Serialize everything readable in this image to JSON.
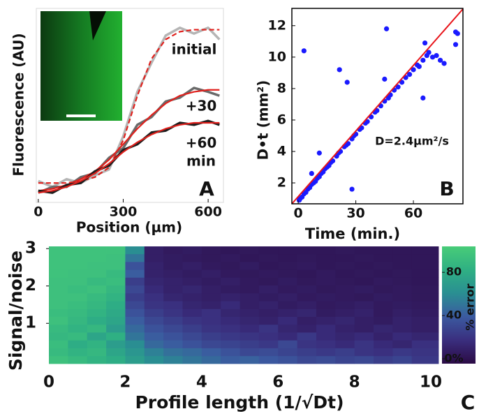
{
  "chart_data": [
    {
      "type": "line",
      "xlabel": "Position (µm)",
      "ylabel": "Fluorescence (AU)",
      "panel": "A",
      "annotations": [
        "initial",
        "+30",
        "+60",
        "min"
      ],
      "xlim": [
        -7,
        654
      ],
      "xticks": [
        0,
        300,
        600
      ],
      "ylim": [
        0,
        1
      ],
      "x": [
        0,
        50,
        100,
        150,
        200,
        250,
        300,
        350,
        400,
        450,
        500,
        550,
        600,
        640
      ],
      "series": [
        {
          "color": "#b5b5b5",
          "linestyle": "solid",
          "values": [
            0.11,
            0.08,
            0.12,
            0.1,
            0.14,
            0.17,
            0.34,
            0.57,
            0.72,
            0.86,
            0.9,
            0.87,
            0.9,
            0.84
          ]
        },
        {
          "color": "#e0201c",
          "linestyle": "dashed",
          "values": [
            0.1,
            0.1,
            0.1,
            0.11,
            0.13,
            0.18,
            0.32,
            0.55,
            0.74,
            0.84,
            0.88,
            0.89,
            0.89,
            0.89
          ]
        },
        {
          "color": "#6a6a6a",
          "linestyle": "solid",
          "values": [
            0.05,
            0.08,
            0.08,
            0.13,
            0.15,
            0.23,
            0.28,
            0.4,
            0.44,
            0.52,
            0.54,
            0.59,
            0.57,
            0.55
          ]
        },
        {
          "color": "#e0201c",
          "linestyle": "solid",
          "values": [
            0.06,
            0.07,
            0.09,
            0.12,
            0.16,
            0.22,
            0.3,
            0.38,
            0.45,
            0.51,
            0.55,
            0.57,
            0.58,
            0.58
          ]
        },
        {
          "color": "#1e1e1e",
          "linestyle": "solid",
          "values": [
            0.06,
            0.05,
            0.09,
            0.1,
            0.16,
            0.19,
            0.27,
            0.3,
            0.36,
            0.37,
            0.41,
            0.4,
            0.42,
            0.4
          ]
        },
        {
          "color": "#e0201c",
          "linestyle": "solid",
          "values": [
            0.05,
            0.06,
            0.08,
            0.11,
            0.15,
            0.2,
            0.26,
            0.31,
            0.35,
            0.38,
            0.4,
            0.41,
            0.41,
            0.41
          ]
        }
      ]
    },
    {
      "type": "scatter",
      "xlabel": "Time (min.)",
      "ylabel": "D•t (mm²)",
      "panel": "B",
      "annotations": [
        "D=2.4µm²/s"
      ],
      "xlim": [
        -3.3,
        85.8
      ],
      "xticks": [
        0,
        30,
        60
      ],
      "ylim": [
        0.67,
        13.1
      ],
      "yticks": [
        2,
        4,
        6,
        8,
        10,
        12
      ],
      "series": [
        {
          "type": "scatter",
          "color": "#1a1aff",
          "x": [
            0.5,
            1,
            2,
            3,
            4,
            5,
            6,
            7,
            8,
            9,
            10,
            11,
            12,
            13,
            14,
            15,
            16,
            17,
            18,
            20,
            21,
            22,
            24,
            25,
            26,
            28,
            29,
            30,
            32,
            33,
            35,
            36,
            38,
            40,
            41,
            43,
            45,
            47,
            48,
            50,
            52,
            54,
            56,
            58,
            60,
            62,
            63,
            65,
            67,
            68,
            70,
            72,
            74,
            76,
            82,
            83,
            82,
            3,
            21.5,
            25.5,
            46,
            11,
            28,
            7,
            65,
            45,
            66
          ],
          "values": [
            0.9,
            1.0,
            1.1,
            1.3,
            1.4,
            1.6,
            1.7,
            1.9,
            2.0,
            2.1,
            2.3,
            2.4,
            2.6,
            2.7,
            2.9,
            3.0,
            3.1,
            3.3,
            3.4,
            3.7,
            3.9,
            4.0,
            4.3,
            4.4,
            4.5,
            4.8,
            5.0,
            5.1,
            5.4,
            5.5,
            5.8,
            5.9,
            6.2,
            6.5,
            6.6,
            6.9,
            7.2,
            7.4,
            7.6,
            7.9,
            8.1,
            8.4,
            8.7,
            8.9,
            9.2,
            9.5,
            9.4,
            9.8,
            10.1,
            10.3,
            10.0,
            10.1,
            9.8,
            9.6,
            11.6,
            11.5,
            10.8,
            10.4,
            9.2,
            8.4,
            11.8,
            3.9,
            1.6,
            2.6,
            7.4,
            8.6,
            10.9
          ]
        },
        {
          "type": "line",
          "color": "#e8141a",
          "x": [
            -3.3,
            85.8
          ],
          "values": [
            0.67,
            13.06
          ]
        }
      ]
    },
    {
      "type": "heatmap",
      "xlabel": "Profile length (1/√Dt)",
      "ylabel": "Signal/noise",
      "panel": "C",
      "xlim": [
        0,
        10.2
      ],
      "xticks": [
        0,
        2,
        4,
        6,
        8,
        10
      ],
      "ylim": [
        -0.08,
        3.06
      ],
      "yticks": [
        1,
        2,
        3
      ],
      "xbins": [
        0,
        0.5,
        1,
        1.5,
        2,
        2.5,
        3,
        3.5,
        4,
        4.5,
        5,
        5.5,
        6,
        6.5,
        7,
        7.5,
        8,
        8.5,
        9,
        9.5,
        10.2
      ],
      "ybins": [
        -0.08,
        0.13,
        0.34,
        0.55,
        0.76,
        0.97,
        1.18,
        1.39,
        1.6,
        1.81,
        2.02,
        2.23,
        2.44,
        2.65,
        2.86,
        3.06
      ],
      "values": [
        [
          95,
          90,
          85,
          80,
          70,
          60,
          55,
          50,
          45,
          40,
          42,
          38,
          35,
          30,
          32,
          28,
          30,
          25,
          28,
          22
        ],
        [
          90,
          85,
          88,
          75,
          65,
          55,
          48,
          45,
          40,
          35,
          30,
          32,
          28,
          25,
          22,
          25,
          20,
          18,
          22,
          20
        ],
        [
          92,
          80,
          85,
          70,
          60,
          45,
          40,
          35,
          30,
          28,
          25,
          22,
          30,
          20,
          18,
          15,
          20,
          15,
          12,
          18
        ],
        [
          88,
          90,
          75,
          82,
          50,
          40,
          35,
          30,
          25,
          22,
          20,
          18,
          15,
          22,
          15,
          12,
          15,
          10,
          15,
          12
        ],
        [
          90,
          85,
          88,
          70,
          45,
          35,
          30,
          25,
          20,
          18,
          15,
          20,
          12,
          10,
          15,
          10,
          8,
          12,
          10,
          8
        ],
        [
          95,
          88,
          80,
          75,
          40,
          30,
          25,
          20,
          18,
          15,
          12,
          10,
          15,
          8,
          10,
          12,
          8,
          6,
          10,
          8
        ],
        [
          92,
          90,
          85,
          78,
          35,
          25,
          20,
          15,
          18,
          12,
          10,
          8,
          10,
          12,
          6,
          8,
          10,
          5,
          8,
          6
        ],
        [
          95,
          92,
          88,
          80,
          30,
          20,
          18,
          12,
          10,
          15,
          8,
          10,
          6,
          8,
          5,
          6,
          8,
          5,
          6,
          5
        ],
        [
          95,
          95,
          90,
          85,
          25,
          18,
          12,
          10,
          8,
          10,
          8,
          6,
          8,
          5,
          6,
          5,
          4,
          6,
          5,
          4
        ],
        [
          95,
          92,
          95,
          88,
          30,
          15,
          10,
          12,
          8,
          6,
          5,
          8,
          5,
          6,
          4,
          5,
          6,
          4,
          5,
          4
        ],
        [
          95,
          95,
          90,
          92,
          25,
          12,
          10,
          8,
          6,
          8,
          5,
          4,
          6,
          4,
          5,
          4,
          3,
          5,
          4,
          3
        ],
        [
          96,
          95,
          95,
          90,
          40,
          10,
          8,
          6,
          8,
          5,
          4,
          5,
          4,
          3,
          5,
          3,
          4,
          3,
          4,
          3
        ],
        [
          96,
          96,
          95,
          95,
          35,
          10,
          6,
          8,
          5,
          4,
          6,
          3,
          4,
          5,
          3,
          4,
          3,
          4,
          3,
          3
        ],
        [
          96,
          96,
          96,
          95,
          50,
          8,
          6,
          5,
          4,
          5,
          3,
          4,
          3,
          4,
          3,
          3,
          4,
          3,
          3,
          3
        ],
        [
          96,
          96,
          96,
          96,
          60,
          8,
          5,
          6,
          4,
          3,
          4,
          3,
          3,
          3,
          3,
          4,
          3,
          3,
          3,
          3
        ]
      ],
      "colorbar": {
        "label": "% error",
        "lim": [
          -4.5,
          104
        ],
        "ticks": [
          80,
          40,
          {
            "value": 0,
            "label": "0%"
          }
        ],
        "colors": [
          "#2b0b45",
          "#3a2e7e",
          "#3b5aa0",
          "#2a8f92",
          "#2fb083",
          "#48cc78"
        ]
      }
    }
  ]
}
